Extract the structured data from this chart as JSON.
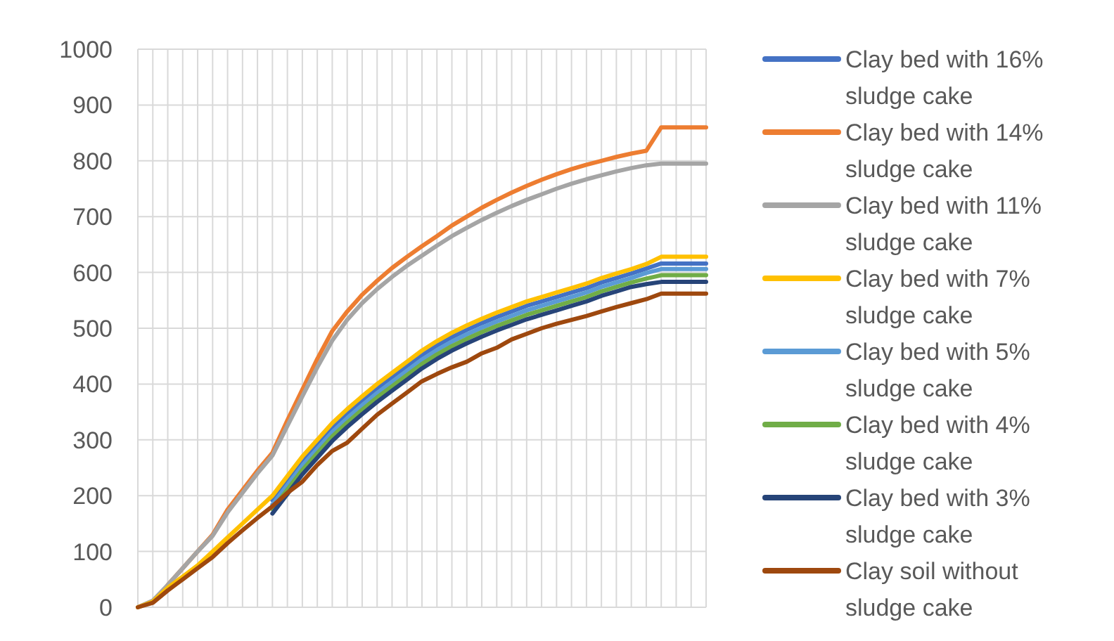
{
  "chart_data": {
    "type": "line",
    "categories": [
      null,
      null,
      null,
      null,
      null,
      null,
      null,
      null,
      null,
      null,
      null,
      null,
      null,
      null,
      null,
      null,
      null,
      null,
      null,
      null,
      null,
      null,
      null,
      null,
      null,
      null,
      null,
      null,
      null,
      null,
      null,
      null,
      null,
      null,
      null,
      null,
      null,
      null,
      null
    ],
    "ylim": [
      0,
      1000
    ],
    "yticks": [
      0,
      100,
      200,
      300,
      400,
      500,
      600,
      700,
      800,
      900,
      1000
    ],
    "grid": true,
    "legend": "right",
    "marker": "none",
    "line_style": "solid",
    "series": [
      {
        "name": "Clay bed with 16% sludge cake",
        "color": "#4472c4",
        "values": [
          null,
          null,
          null,
          null,
          null,
          null,
          null,
          null,
          null,
          192,
          227,
          262,
          292,
          322,
          347,
          370,
          392,
          412,
          432,
          452,
          469,
          484,
          497,
          509,
          520,
          530,
          540,
          548,
          556,
          564,
          572,
          582,
          590,
          598,
          607,
          616,
          616,
          616,
          616
        ]
      },
      {
        "name": "Clay bed with 14% sludge cake",
        "color": "#ed7d31",
        "values": [
          null,
          null,
          40,
          70,
          100,
          130,
          175,
          210,
          245,
          277,
          335,
          390,
          445,
          495,
          530,
          560,
          585,
          608,
          628,
          647,
          665,
          684,
          700,
          716,
          730,
          743,
          755,
          766,
          776,
          785,
          793,
          800,
          807,
          813,
          818,
          860,
          860,
          860,
          860
        ]
      },
      {
        "name": "Clay bed with 11% sludge cake",
        "color": "#a5a5a5",
        "values": [
          0,
          12,
          40,
          70,
          100,
          128,
          170,
          205,
          240,
          272,
          325,
          378,
          430,
          478,
          515,
          545,
          570,
          592,
          612,
          630,
          648,
          665,
          680,
          694,
          707,
          719,
          730,
          740,
          750,
          759,
          767,
          774,
          781,
          787,
          792,
          795,
          795,
          795,
          795
        ]
      },
      {
        "name": "Clay bed with 7% sludge cake",
        "color": "#ffc000",
        "values": [
          0,
          10,
          35,
          55,
          75,
          100,
          125,
          150,
          175,
          200,
          235,
          270,
          300,
          330,
          355,
          378,
          400,
          420,
          440,
          460,
          477,
          492,
          505,
          517,
          528,
          538,
          548,
          556,
          564,
          572,
          580,
          590,
          598,
          606,
          615,
          628,
          628,
          628,
          628
        ]
      },
      {
        "name": "Clay bed with 5% sludge cake",
        "color": "#5b9bd5",
        "values": [
          null,
          null,
          null,
          null,
          null,
          null,
          null,
          null,
          null,
          184,
          219,
          254,
          284,
          314,
          339,
          362,
          384,
          404,
          424,
          444,
          461,
          476,
          489,
          501,
          512,
          522,
          532,
          540,
          548,
          556,
          564,
          574,
          582,
          590,
          599,
          606,
          606,
          606,
          606
        ]
      },
      {
        "name": "Clay bed with 4% sludge cake",
        "color": "#70ad47",
        "values": [
          null,
          null,
          null,
          null,
          null,
          null,
          null,
          null,
          null,
          176,
          211,
          246,
          276,
          306,
          331,
          354,
          376,
          396,
          416,
          436,
          453,
          468,
          481,
          493,
          504,
          514,
          524,
          532,
          540,
          548,
          556,
          566,
          574,
          582,
          589,
          595,
          595,
          595,
          595
        ]
      },
      {
        "name": "Clay bed with 3% sludge cake",
        "color": "#264478",
        "values": [
          null,
          null,
          null,
          null,
          null,
          null,
          null,
          null,
          null,
          168,
          203,
          238,
          268,
          298,
          323,
          346,
          368,
          388,
          408,
          428,
          445,
          460,
          473,
          485,
          496,
          506,
          516,
          524,
          532,
          540,
          548,
          558,
          566,
          574,
          579,
          583,
          583,
          583,
          583
        ]
      },
      {
        "name": "Clay soil without sludge cake",
        "color": "#9e480e",
        "values": [
          0,
          8,
          30,
          50,
          70,
          90,
          115,
          138,
          160,
          181,
          205,
          225,
          255,
          280,
          295,
          320,
          345,
          365,
          385,
          405,
          418,
          430,
          440,
          455,
          465,
          480,
          490,
          500,
          508,
          515,
          522,
          530,
          538,
          545,
          552,
          562,
          562,
          562,
          562
        ]
      }
    ]
  }
}
